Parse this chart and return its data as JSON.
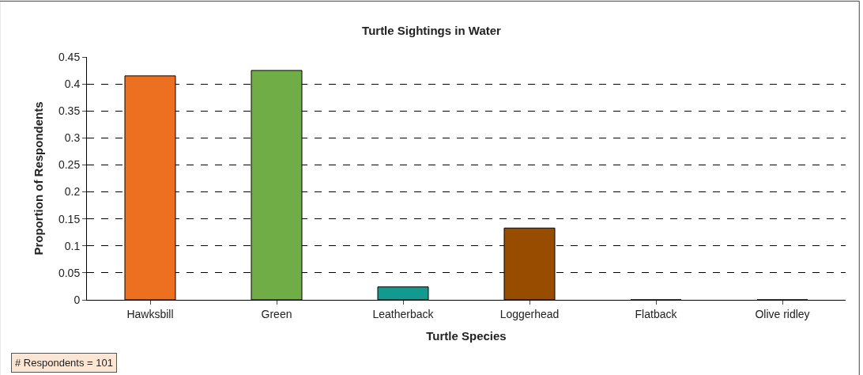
{
  "chart_data": {
    "type": "bar",
    "title": "Turtle Sightings in Water",
    "xlabel": "Turtle Species",
    "ylabel": "Proportion of Respondents",
    "categories": [
      "Hawksbill",
      "Green",
      "Leatherback",
      "Loggerhead",
      "Flatback",
      "Olive ridley"
    ],
    "values": [
      0.415,
      0.425,
      0.024,
      0.133,
      0,
      0
    ],
    "colors": [
      "#ed7020",
      "#70ad47",
      "#129a8e",
      "#974c00",
      "#974c00",
      "#974c00"
    ],
    "ylim": [
      0,
      0.45
    ],
    "yticks": [
      {
        "value": 0,
        "label": "0"
      },
      {
        "value": 0.05,
        "label": "0.05"
      },
      {
        "value": 0.1,
        "label": "0.1"
      },
      {
        "value": 0.15,
        "label": "0.15"
      },
      {
        "value": 0.2,
        "label": "0.2"
      },
      {
        "value": 0.25,
        "label": "0.25"
      },
      {
        "value": 0.3,
        "label": "0.3"
      },
      {
        "value": 0.35,
        "label": "0.35"
      },
      {
        "value": 0.4,
        "label": "0.4"
      },
      {
        "value": 0.45,
        "label": "0.45"
      }
    ],
    "grid": "y",
    "annotations": [
      "# Respondents = 101"
    ]
  }
}
